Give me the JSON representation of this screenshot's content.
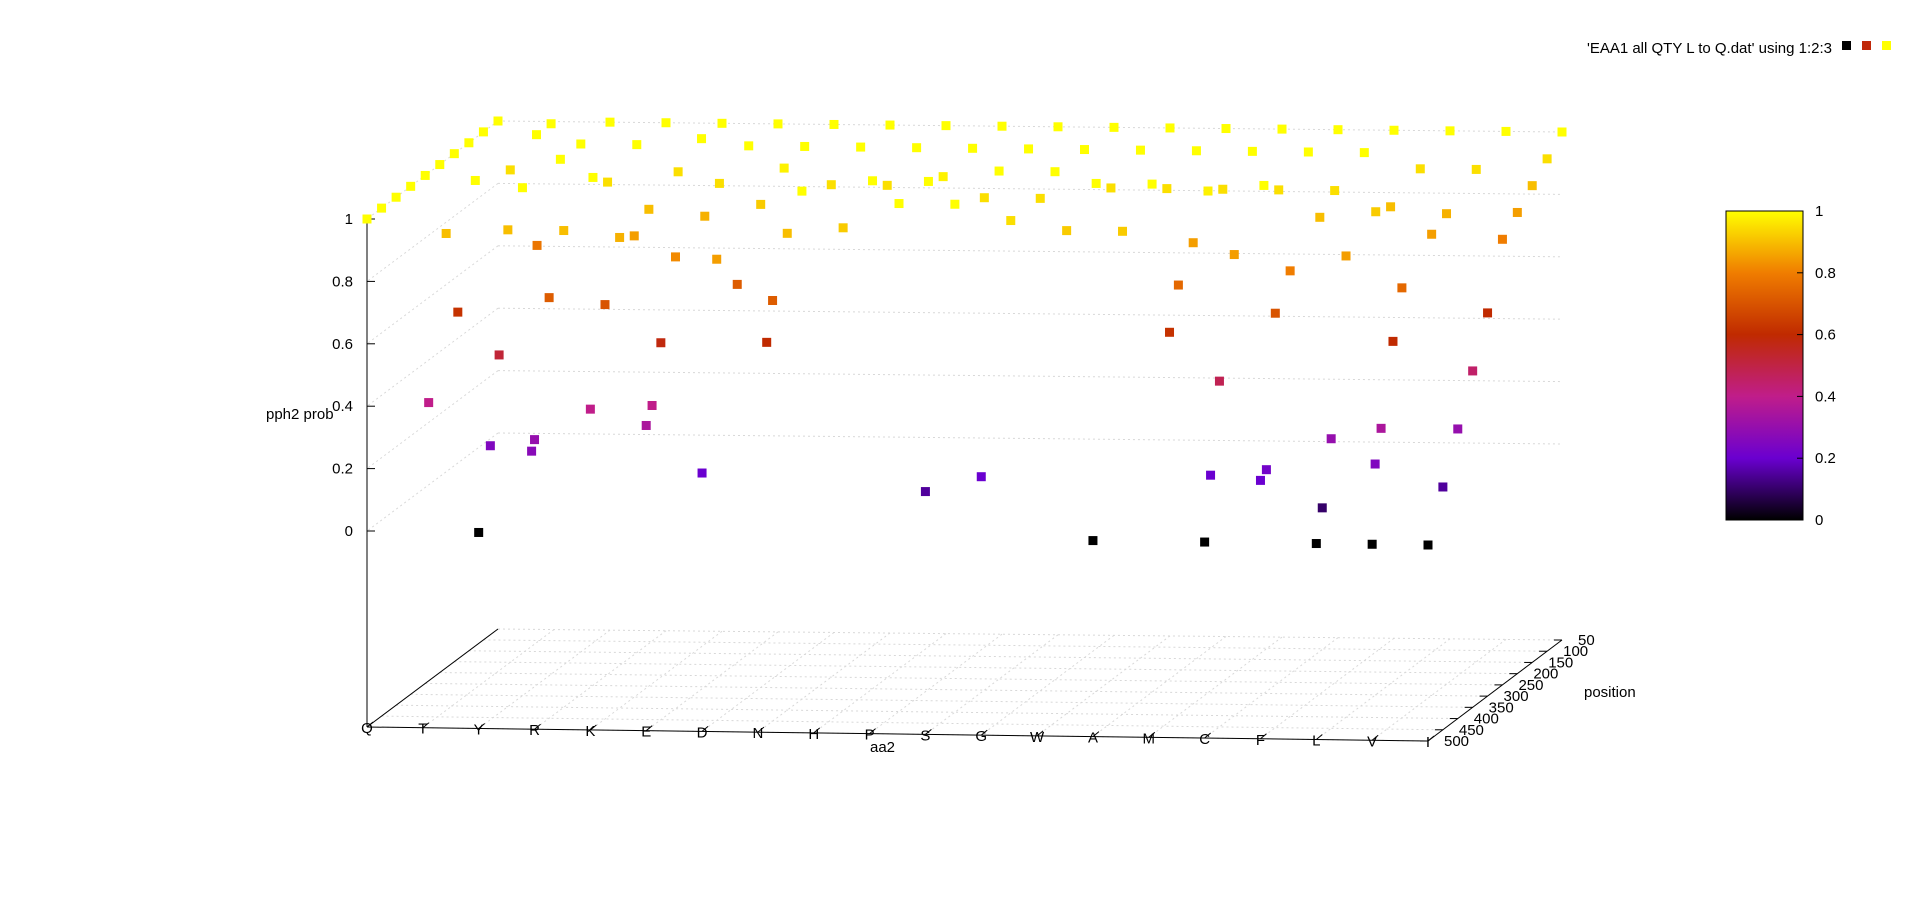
{
  "legend": {
    "label": "'EAA1 all QTY L to Q.dat' using 1:2:3",
    "swatch_colors": [
      "#000000",
      "#c0280a",
      "#ffff00"
    ]
  },
  "colorbar": {
    "ticks": [
      "1",
      "0.8",
      "0.6",
      "0.4",
      "0.2",
      "0"
    ],
    "palette": [
      "#000000",
      "#6a00d0",
      "#c01d8a",
      "#c02a00",
      "#f07d00",
      "#ffff00"
    ]
  },
  "chart_data": {
    "type": "scatter",
    "projection": "3d",
    "title": "",
    "xlabel": "aa2",
    "ylabel": "position",
    "zlabel": "pph2 prob",
    "x_categories": [
      "Q",
      "T",
      "Y",
      "R",
      "K",
      "E",
      "D",
      "N",
      "H",
      "P",
      "S",
      "G",
      "W",
      "A",
      "M",
      "C",
      "F",
      "L",
      "V",
      "I"
    ],
    "y_ticks": [
      50,
      100,
      150,
      200,
      250,
      300,
      350,
      400,
      450,
      500
    ],
    "z_ticks": [
      0,
      0.2,
      0.4,
      0.6,
      0.8,
      1
    ],
    "z_range": [
      0,
      1
    ],
    "color_range": [
      0,
      1
    ],
    "grid": true,
    "legend_position": "top-right",
    "points": [
      [
        "Q",
        50,
        1
      ],
      [
        "Q",
        100,
        1
      ],
      [
        "Q",
        150,
        1
      ],
      [
        "Q",
        200,
        1
      ],
      [
        "Q",
        250,
        1
      ],
      [
        "Q",
        300,
        1
      ],
      [
        "Q",
        350,
        1
      ],
      [
        "Q",
        400,
        1
      ],
      [
        "Q",
        450,
        1
      ],
      [
        "Q",
        500,
        1
      ],
      [
        "T",
        60,
        1
      ],
      [
        "T",
        110,
        1
      ],
      [
        "T",
        200,
        0.95
      ],
      [
        "T",
        320,
        1
      ],
      [
        "T",
        380,
        0.62
      ],
      [
        "T",
        420,
        0.9
      ],
      [
        "T",
        480,
        0.4
      ],
      [
        "Y",
        50,
        1
      ],
      [
        "Y",
        150,
        1
      ],
      [
        "Y",
        220,
        1
      ],
      [
        "Y",
        300,
        0.78
      ],
      [
        "Y",
        350,
        1
      ],
      [
        "Y",
        400,
        0.9
      ],
      [
        "Y",
        430,
        0.52
      ],
      [
        "Y",
        460,
        0.25
      ],
      [
        "Y",
        500,
        0
      ],
      [
        "R",
        50,
        1
      ],
      [
        "R",
        150,
        1
      ],
      [
        "R",
        250,
        0.95
      ],
      [
        "R",
        300,
        1
      ],
      [
        "R",
        400,
        0.9
      ],
      [
        "R",
        450,
        0.72
      ],
      [
        "R",
        500,
        0.3
      ],
      [
        "R",
        510,
        0.27
      ],
      [
        "K",
        50,
        1
      ],
      [
        "K",
        120,
        1
      ],
      [
        "K",
        200,
        0.95
      ],
      [
        "K",
        300,
        0.9
      ],
      [
        "K",
        350,
        0.85
      ],
      [
        "K",
        400,
        0.88
      ],
      [
        "K",
        450,
        0.7
      ],
      [
        "K",
        500,
        0.4
      ],
      [
        "E",
        50,
        1
      ],
      [
        "E",
        150,
        1
      ],
      [
        "E",
        250,
        0.95
      ],
      [
        "E",
        300,
        0.88
      ],
      [
        "E",
        400,
        0.82
      ],
      [
        "E",
        450,
        0.58
      ],
      [
        "E",
        480,
        0.4
      ],
      [
        "E",
        500,
        0.35
      ],
      [
        "D",
        50,
        1
      ],
      [
        "D",
        150,
        1
      ],
      [
        "D",
        220,
        0.98
      ],
      [
        "D",
        300,
        0.92
      ],
      [
        "D",
        380,
        0.72
      ],
      [
        "D",
        450,
        0.85
      ],
      [
        "D",
        500,
        0.2
      ],
      [
        "N",
        50,
        1
      ],
      [
        "N",
        150,
        1
      ],
      [
        "N",
        250,
        0.95
      ],
      [
        "N",
        350,
        1
      ],
      [
        "N",
        400,
        0.9
      ],
      [
        "N",
        450,
        0.72
      ],
      [
        "N",
        470,
        0.6
      ],
      [
        "H",
        50,
        1
      ],
      [
        "H",
        150,
        1
      ],
      [
        "H",
        250,
        0.95
      ],
      [
        "H",
        300,
        1
      ],
      [
        "H",
        400,
        0.92
      ],
      [
        "P",
        50,
        1
      ],
      [
        "P",
        150,
        1
      ],
      [
        "P",
        250,
        0.98
      ],
      [
        "P",
        300,
        1
      ],
      [
        "P",
        400,
        1
      ],
      [
        "S",
        50,
        1
      ],
      [
        "S",
        150,
        1
      ],
      [
        "S",
        250,
        1
      ],
      [
        "S",
        300,
        0.95
      ],
      [
        "S",
        400,
        1
      ],
      [
        "S",
        500,
        0.15
      ],
      [
        "G",
        50,
        1
      ],
      [
        "G",
        150,
        1
      ],
      [
        "G",
        250,
        1
      ],
      [
        "G",
        300,
        0.95
      ],
      [
        "G",
        400,
        0.95
      ],
      [
        "G",
        500,
        0.2
      ],
      [
        "W",
        50,
        1
      ],
      [
        "W",
        150,
        1
      ],
      [
        "W",
        250,
        0.95
      ],
      [
        "W",
        300,
        1
      ],
      [
        "W",
        400,
        0.92
      ],
      [
        "A",
        50,
        1
      ],
      [
        "A",
        150,
        1
      ],
      [
        "A",
        250,
        0.95
      ],
      [
        "A",
        300,
        1
      ],
      [
        "A",
        400,
        0.92
      ],
      [
        "A",
        500,
        0
      ],
      [
        "M",
        50,
        1
      ],
      [
        "M",
        150,
        1
      ],
      [
        "M",
        250,
        0.95
      ],
      [
        "M",
        300,
        0.98
      ],
      [
        "M",
        350,
        0.85
      ],
      [
        "M",
        400,
        0.75
      ],
      [
        "M",
        430,
        0.62
      ],
      [
        "C",
        50,
        1
      ],
      [
        "C",
        150,
        1
      ],
      [
        "C",
        250,
        0.95
      ],
      [
        "C",
        300,
        1
      ],
      [
        "C",
        400,
        0.85
      ],
      [
        "C",
        450,
        0.48
      ],
      [
        "C",
        480,
        0.2
      ],
      [
        "C",
        500,
        0
      ],
      [
        "F",
        50,
        1
      ],
      [
        "F",
        150,
        1
      ],
      [
        "F",
        250,
        0.95
      ],
      [
        "F",
        300,
        0.9
      ],
      [
        "F",
        400,
        0.8
      ],
      [
        "F",
        450,
        0.7
      ],
      [
        "F",
        480,
        0.22
      ],
      [
        "F",
        500,
        0.2
      ],
      [
        "L",
        50,
        1
      ],
      [
        "L",
        150,
        0.95
      ],
      [
        "L",
        250,
        0.9
      ],
      [
        "L",
        300,
        0.92
      ],
      [
        "L",
        400,
        0.85
      ],
      [
        "L",
        450,
        0.3
      ],
      [
        "L",
        480,
        0.1
      ],
      [
        "L",
        500,
        0
      ],
      [
        "V",
        50,
        1
      ],
      [
        "V",
        150,
        0.95
      ],
      [
        "V",
        250,
        0.88
      ],
      [
        "V",
        300,
        0.85
      ],
      [
        "V",
        400,
        0.75
      ],
      [
        "V",
        430,
        0.6
      ],
      [
        "V",
        470,
        0.35
      ],
      [
        "V",
        490,
        0.25
      ],
      [
        "V",
        500,
        0
      ],
      [
        "I",
        50,
        1
      ],
      [
        "I",
        100,
        0.95
      ],
      [
        "I",
        150,
        0.9
      ],
      [
        "I",
        200,
        0.85
      ],
      [
        "I",
        250,
        0.8
      ],
      [
        "I",
        300,
        0.6
      ],
      [
        "I",
        350,
        0.45
      ],
      [
        "I",
        400,
        0.3
      ],
      [
        "I",
        450,
        0.15
      ],
      [
        "I",
        500,
        0
      ]
    ]
  }
}
